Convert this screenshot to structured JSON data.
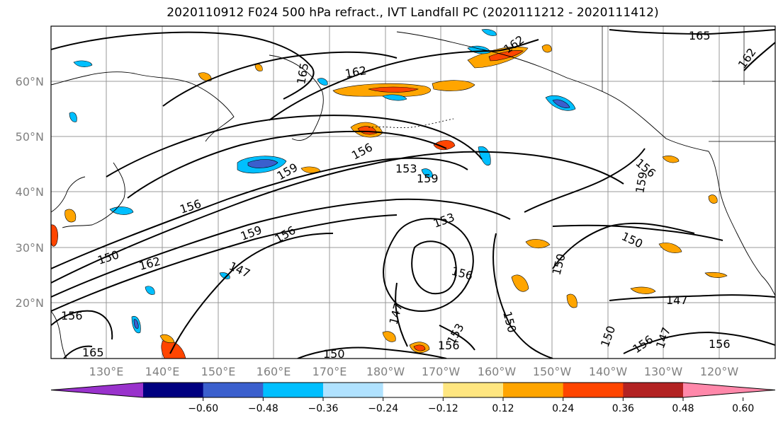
{
  "title": "2020110912 F024 500 hPa refract., IVT Landfall PC (2020111212 - 2020111412)",
  "lat_labels": [
    "60°N",
    "50°N",
    "40°N",
    "30°N",
    "20°N"
  ],
  "lon_labels": [
    "130°E",
    "140°E",
    "150°E",
    "160°E",
    "170°E",
    "180°W",
    "170°W",
    "160°W",
    "150°W",
    "140°W",
    "130°W",
    "120°W"
  ],
  "contour_labels": [
    "165",
    "162",
    "156",
    "153",
    "159",
    "156",
    "159",
    "156",
    "159",
    "153",
    "150",
    "147",
    "156",
    "147",
    "153",
    "156",
    "150",
    "147",
    "150",
    "156",
    "150",
    "150",
    "156",
    "162",
    "165",
    "156",
    "162",
    "162",
    "150",
    "156",
    "159",
    "147",
    "165"
  ],
  "colorbar": {
    "colors": [
      "#9932cc",
      "#000080",
      "#3a5fcd",
      "#00bfff",
      "#b0e2ff",
      "#ffffff",
      "#ffe680",
      "#ffa500",
      "#ff4500",
      "#b22222",
      "#ff88aa"
    ],
    "ticks": [
      "−0.60",
      "−0.48",
      "−0.36",
      "−0.24",
      "−0.12",
      "0.12",
      "0.24",
      "0.36",
      "0.48",
      "0.60"
    ]
  }
}
